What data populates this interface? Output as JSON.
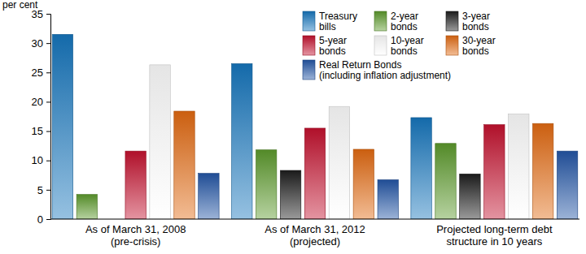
{
  "chart_data": {
    "type": "bar",
    "y_axis_label": "per cent",
    "categories": [
      "As of March 31, 2008\n(pre-crisis)",
      "As of March 31, 2012\n(projected)",
      "Projected long-term debt\nstructure in 10 years"
    ],
    "series": [
      {
        "name": "Treasury bills",
        "color": "#1676bd",
        "values": [
          31.5,
          26.5,
          17.3
        ]
      },
      {
        "name": "2-year bonds",
        "color": "#5c9a2c",
        "values": [
          4.2,
          11.8,
          12.9
        ]
      },
      {
        "name": "3-year bonds",
        "color": "#1e1e1e",
        "values": [
          null,
          8.3,
          7.7
        ]
      },
      {
        "name": "5-year bonds",
        "color": "#c4122f",
        "values": [
          11.6,
          15.5,
          16.1
        ]
      },
      {
        "name": "10-year bonds",
        "color": "#ffffff",
        "values": [
          26.3,
          19.2,
          17.9
        ]
      },
      {
        "name": "30-year bonds",
        "color": "#e26a12",
        "values": [
          18.4,
          11.9,
          16.3
        ]
      },
      {
        "name": "Real Return Bonds (including inflation adjustment)",
        "color": "#2456a6",
        "values": [
          7.8,
          6.7,
          11.6
        ]
      }
    ],
    "ylim": [
      0,
      35
    ],
    "yticks": [
      0,
      5,
      10,
      15,
      20,
      25,
      30,
      35
    ],
    "grid": false,
    "legend": "top-right"
  }
}
